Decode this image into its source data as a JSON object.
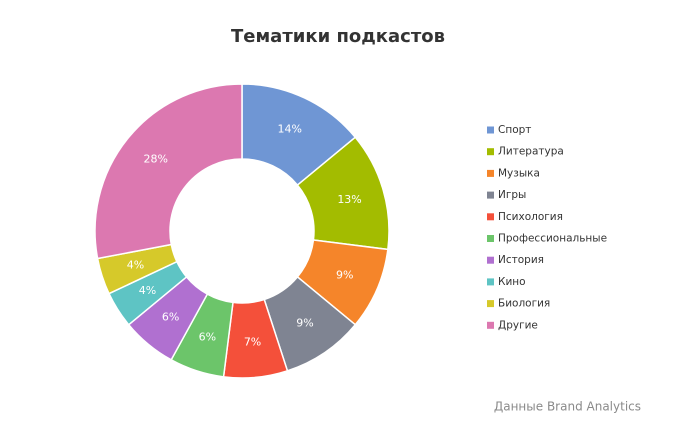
{
  "chart_data": {
    "type": "donut",
    "title": "Тематики подкастов",
    "categories": [
      "Спорт",
      "Литература",
      "Музыка",
      "Игры",
      "Психология",
      "Профессиональные",
      "История",
      "Кино",
      "Биология",
      "Другие"
    ],
    "values": [
      14,
      13,
      9,
      9,
      7,
      6,
      6,
      4,
      4,
      28
    ],
    "value_labels": [
      "14%",
      "13%",
      "9%",
      "9%",
      "7%",
      "6%",
      "6%",
      "4%",
      "4%",
      "28%"
    ],
    "colors": [
      "#6f96d4",
      "#a3bc00",
      "#f5852a",
      "#7f8492",
      "#f4503a",
      "#6cc56a",
      "#b070d0",
      "#5ec4c4",
      "#d6c92a",
      "#dc78b0"
    ],
    "legend": "right",
    "source": "Данные Brand Analytics"
  }
}
